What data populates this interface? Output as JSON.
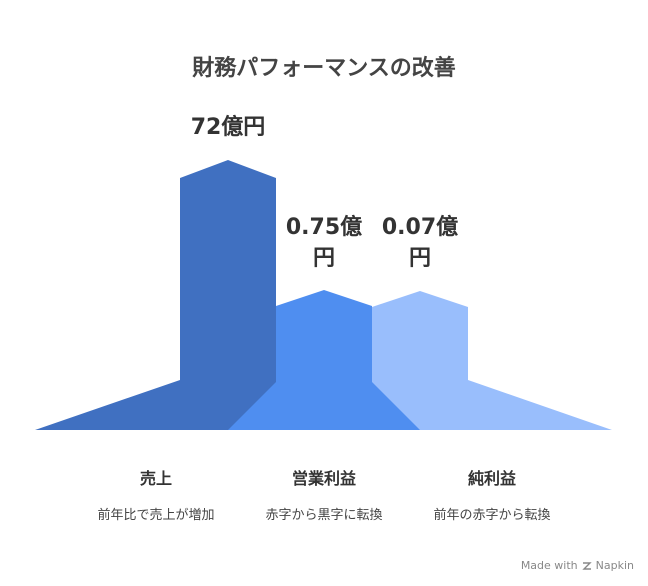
{
  "title": "財務パフォーマンスの改善",
  "items": [
    {
      "value_label": "72億円",
      "name": "売上",
      "description": "前年比で売上が増加"
    },
    {
      "value_label": "0.75億円",
      "name": "営業利益",
      "description": "赤字から黒字に転換"
    },
    {
      "value_label": "0.07億円",
      "name": "純利益",
      "description": "前年の赤字から転換"
    }
  ],
  "footer": {
    "text": "Made with",
    "brand": "Napkin"
  }
}
